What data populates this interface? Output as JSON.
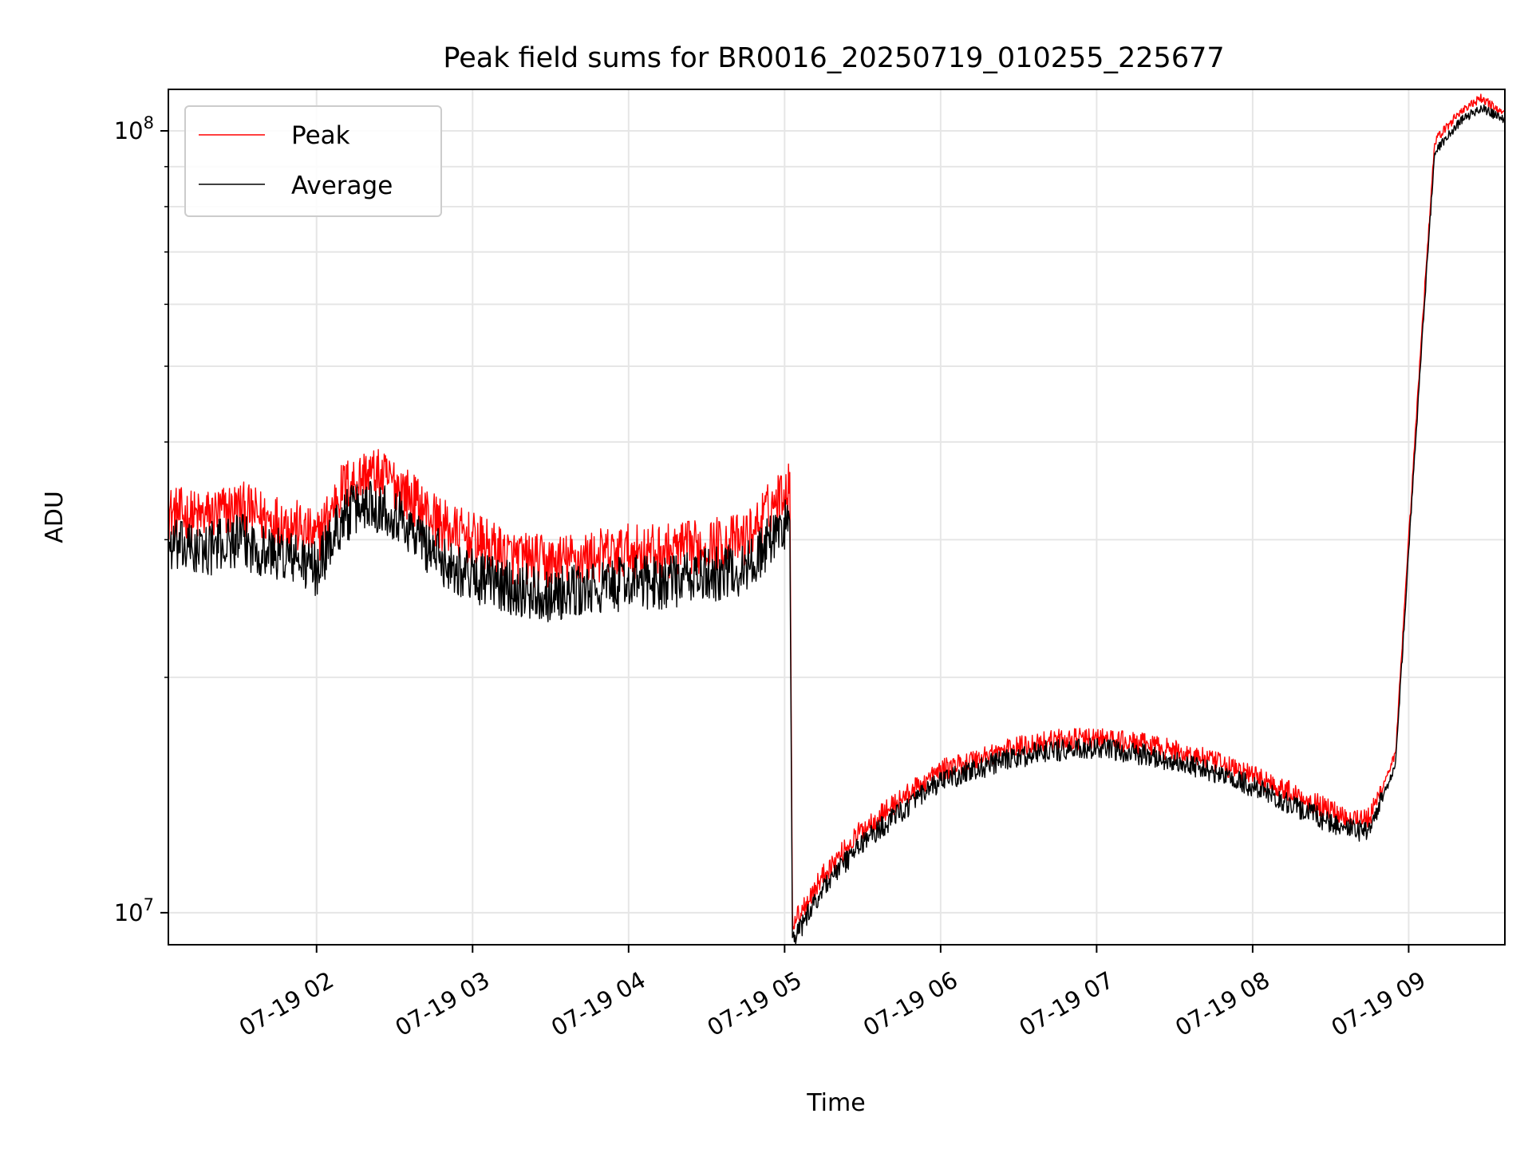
{
  "chart_data": {
    "type": "line",
    "title": "Peak field sums for BR0016_20250719_010255_225677",
    "xlabel": "Time",
    "ylabel": "ADU",
    "y_scale": "log",
    "ylim": [
      9100000,
      113000000
    ],
    "xlim": [
      "2025-07-19 01:03",
      "2025-07-19 09:37"
    ],
    "x_ticks": [
      {
        "label": "07-19 02",
        "value": "2025-07-19 02:00"
      },
      {
        "label": "07-19 03",
        "value": "2025-07-19 03:00"
      },
      {
        "label": "07-19 04",
        "value": "2025-07-19 04:00"
      },
      {
        "label": "07-19 05",
        "value": "2025-07-19 05:00"
      },
      {
        "label": "07-19 06",
        "value": "2025-07-19 06:00"
      },
      {
        "label": "07-19 07",
        "value": "2025-07-19 07:00"
      },
      {
        "label": "07-19 08",
        "value": "2025-07-19 08:00"
      },
      {
        "label": "07-19 09",
        "value": "2025-07-19 09:00"
      }
    ],
    "y_ticks": [
      {
        "base": "10",
        "exp": "7",
        "value": 10000000
      },
      {
        "base": "10",
        "exp": "8",
        "value": 100000000
      }
    ],
    "grid": true,
    "legend_position": "upper-left",
    "series": [
      {
        "name": "Peak",
        "color": "#ff0000",
        "x": [
          "2025-07-19 01:03",
          "2025-07-19 01:15",
          "2025-07-19 01:30",
          "2025-07-19 01:40",
          "2025-07-19 01:50",
          "2025-07-19 02:00",
          "2025-07-19 02:10",
          "2025-07-19 02:20",
          "2025-07-19 02:30",
          "2025-07-19 02:40",
          "2025-07-19 02:50",
          "2025-07-19 03:00",
          "2025-07-19 03:15",
          "2025-07-19 03:30",
          "2025-07-19 03:45",
          "2025-07-19 04:00",
          "2025-07-19 04:15",
          "2025-07-19 04:30",
          "2025-07-19 04:45",
          "2025-07-19 05:02",
          "2025-07-19 05:03",
          "2025-07-19 05:05",
          "2025-07-19 05:15",
          "2025-07-19 05:30",
          "2025-07-19 05:45",
          "2025-07-19 06:00",
          "2025-07-19 06:20",
          "2025-07-19 06:40",
          "2025-07-19 07:00",
          "2025-07-19 07:20",
          "2025-07-19 07:40",
          "2025-07-19 08:00",
          "2025-07-19 08:20",
          "2025-07-19 08:35",
          "2025-07-19 08:45",
          "2025-07-19 08:55",
          "2025-07-19 09:00",
          "2025-07-19 09:05",
          "2025-07-19 09:10",
          "2025-07-19 09:20",
          "2025-07-19 09:28",
          "2025-07-19 09:37"
        ],
        "y": [
          32500000,
          32000000,
          33000000,
          32000000,
          31500000,
          30000000,
          35000000,
          36500000,
          35500000,
          33000000,
          31000000,
          30000000,
          28500000,
          28000000,
          28500000,
          29000000,
          29000000,
          29500000,
          30000000,
          35500000,
          9800000,
          9900000,
          11200000,
          12800000,
          14000000,
          15200000,
          16000000,
          16600000,
          16700000,
          16400000,
          15800000,
          15000000,
          14000000,
          13300000,
          13200000,
          16000000,
          30000000,
          55000000,
          97000000,
          106000000,
          110000000,
          105000000
        ]
      },
      {
        "name": "Average",
        "color": "#000000",
        "x": [
          "2025-07-19 01:03",
          "2025-07-19 01:15",
          "2025-07-19 01:30",
          "2025-07-19 01:40",
          "2025-07-19 01:50",
          "2025-07-19 02:00",
          "2025-07-19 02:10",
          "2025-07-19 02:20",
          "2025-07-19 02:30",
          "2025-07-19 02:40",
          "2025-07-19 02:50",
          "2025-07-19 03:00",
          "2025-07-19 03:15",
          "2025-07-19 03:30",
          "2025-07-19 03:45",
          "2025-07-19 04:00",
          "2025-07-19 04:15",
          "2025-07-19 04:30",
          "2025-07-19 04:45",
          "2025-07-19 05:02",
          "2025-07-19 05:03",
          "2025-07-19 05:05",
          "2025-07-19 05:15",
          "2025-07-19 05:30",
          "2025-07-19 05:45",
          "2025-07-19 06:00",
          "2025-07-19 06:20",
          "2025-07-19 06:40",
          "2025-07-19 07:00",
          "2025-07-19 07:20",
          "2025-07-19 07:40",
          "2025-07-19 08:00",
          "2025-07-19 08:20",
          "2025-07-19 08:35",
          "2025-07-19 08:45",
          "2025-07-19 08:55",
          "2025-07-19 09:00",
          "2025-07-19 09:05",
          "2025-07-19 09:10",
          "2025-07-19 09:20",
          "2025-07-19 09:28",
          "2025-07-19 09:37"
        ],
        "y": [
          29500000,
          29000000,
          30000000,
          29000000,
          28500000,
          27500000,
          32000000,
          33500000,
          32500000,
          30000000,
          28000000,
          27000000,
          26000000,
          25500000,
          25800000,
          26500000,
          26500000,
          27000000,
          27500000,
          32000000,
          9200000,
          9400000,
          10800000,
          12300000,
          13500000,
          14700000,
          15500000,
          16100000,
          16200000,
          15900000,
          15300000,
          14500000,
          13500000,
          12800000,
          12700000,
          15500000,
          29000000,
          53000000,
          94000000,
          103000000,
          107000000,
          103000000
        ]
      }
    ]
  }
}
